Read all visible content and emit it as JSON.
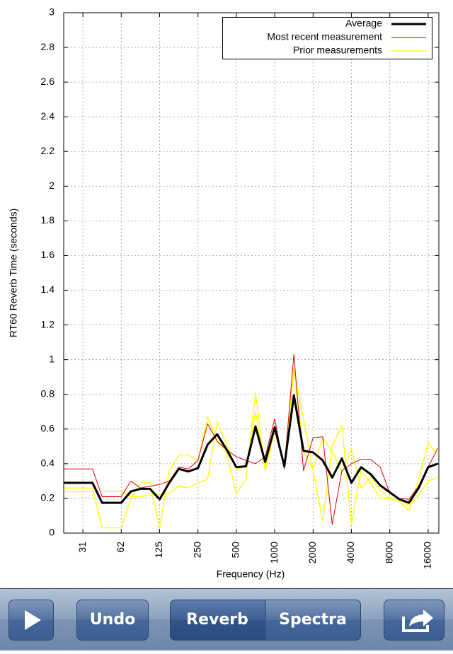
{
  "chart_data": {
    "type": "line",
    "xlabel": "Frequency (Hz)",
    "ylabel": "RT60 Reverb Time (seconds)",
    "xscale": "log",
    "grid": true,
    "legend": "upper right",
    "xlim": [
      22.1,
      19400
    ],
    "ylim": [
      0,
      3
    ],
    "xticks": [
      {
        "value": 31.25,
        "label": "31"
      },
      {
        "value": 62.5,
        "label": "62"
      },
      125,
      250,
      500,
      1000,
      2000,
      4000,
      8000,
      16000
    ],
    "yticks": [
      0,
      0.2,
      0.4,
      0.6,
      0.8,
      1,
      1.2,
      1.4,
      1.6,
      1.8,
      2,
      2.2,
      2.4,
      2.6,
      2.8,
      3
    ],
    "x": [
      22.1,
      26.3,
      31.25,
      37.2,
      44.2,
      52.6,
      62.5,
      74.3,
      88.4,
      105.1,
      125,
      148.7,
      176.8,
      210.2,
      250,
      297.3,
      353.6,
      420.4,
      500,
      594.6,
      707.1,
      840.9,
      1000,
      1189,
      1414,
      1682,
      2000,
      2378,
      2828,
      3364,
      4000,
      4757,
      5657,
      6727,
      8000,
      9514,
      11314,
      13454,
      16000,
      19027
    ],
    "series": [
      {
        "name": "Average",
        "color": "#000000",
        "width": 3,
        "values": [
          0.29,
          0.29,
          0.29,
          0.29,
          0.175,
          0.175,
          0.175,
          0.24,
          0.255,
          0.255,
          0.195,
          0.29,
          0.37,
          0.355,
          0.375,
          0.51,
          0.57,
          0.48,
          0.38,
          0.385,
          0.615,
          0.41,
          0.61,
          0.385,
          0.795,
          0.475,
          0.465,
          0.42,
          0.32,
          0.43,
          0.29,
          0.38,
          0.34,
          0.275,
          0.235,
          0.195,
          0.175,
          0.26,
          0.38,
          0.4
        ]
      },
      {
        "name": "Most recent measurement",
        "color": "#e00000",
        "width": 1,
        "values": [
          0.37,
          0.37,
          0.37,
          0.37,
          0.21,
          0.21,
          0.21,
          0.3,
          0.26,
          0.27,
          0.28,
          0.3,
          0.38,
          0.37,
          0.42,
          0.63,
          0.53,
          0.48,
          0.44,
          0.42,
          0.4,
          0.44,
          0.66,
          0.37,
          1.03,
          0.36,
          0.55,
          0.555,
          0.05,
          0.36,
          0.4,
          0.425,
          0.425,
          0.38,
          0.23,
          0.2,
          0.195,
          0.27,
          0.38,
          0.49
        ]
      },
      {
        "name": "Prior measurements",
        "color": "#ffff00",
        "width": 1.3,
        "values": [
          0.26,
          0.26,
          0.26,
          0.26,
          0.03,
          0.03,
          0.03,
          0.2,
          0.29,
          0.29,
          0.03,
          0.36,
          0.45,
          0.45,
          0.42,
          0.67,
          0.53,
          0.46,
          0.23,
          0.31,
          0.81,
          0.37,
          0.62,
          0.38,
          0.93,
          0.66,
          0.36,
          0.07,
          0.5,
          0.62,
          0.05,
          0.36,
          0.29,
          0.2,
          0.2,
          0.18,
          0.13,
          0.31,
          0.52,
          0.45
        ]
      },
      {
        "color": "#ffff00",
        "width": 1.3,
        "values": [
          0.24,
          0.24,
          0.24,
          0.24,
          0.24,
          0.24,
          0.24,
          0.21,
          0.21,
          0.22,
          0.22,
          0.23,
          0.27,
          0.26,
          0.29,
          0.31,
          0.64,
          0.51,
          0.37,
          0.38,
          0.7,
          0.36,
          0.59,
          0.4,
          0.95,
          0.47,
          0.37,
          0.55,
          0.47,
          0.35,
          0.49,
          0.26,
          0.32,
          0.25,
          0.2,
          0.19,
          0.16,
          0.22,
          0.3,
          0.32
        ]
      }
    ]
  },
  "toolbar": {
    "buttons": [
      "Undo",
      "Reverb",
      "Spectra"
    ]
  }
}
